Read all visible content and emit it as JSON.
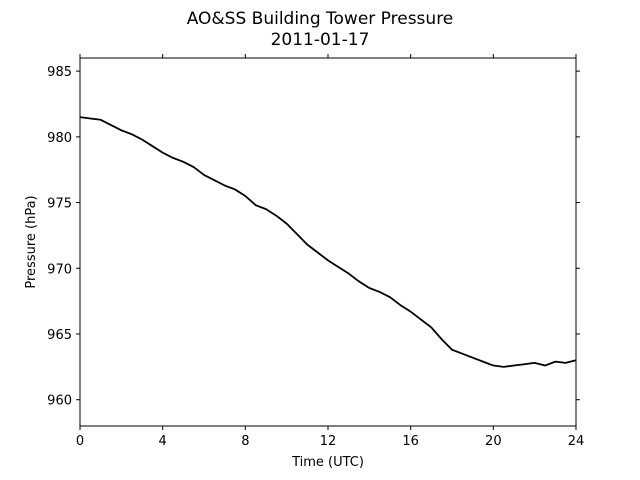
{
  "chart_data": {
    "type": "line",
    "title": "AO&SS Building Tower Pressure",
    "subtitle": "2011-01-17",
    "xlabel": "Time (UTC)",
    "ylabel": "Pressure (hPa)",
    "xlim": [
      0,
      24
    ],
    "ylim": [
      958,
      986
    ],
    "xticks": [
      0,
      4,
      8,
      12,
      16,
      20,
      24
    ],
    "yticks": [
      960,
      965,
      970,
      975,
      980,
      985
    ],
    "grid": false,
    "colors": {
      "line": "#000000",
      "axes": "#000000",
      "background": "#ffffff"
    },
    "series": [
      {
        "x": [
          0,
          0.5,
          1,
          1.5,
          2,
          2.5,
          3,
          3.5,
          4,
          4.5,
          5,
          5.5,
          6,
          6.5,
          7,
          7.5,
          8,
          8.5,
          9,
          9.5,
          10,
          10.5,
          11,
          11.5,
          12,
          12.5,
          13,
          13.5,
          14,
          14.5,
          15,
          15.5,
          16,
          16.5,
          17,
          17.5,
          18,
          18.5,
          19,
          19.5,
          20,
          20.5,
          21,
          21.5,
          22,
          22.5,
          23,
          23.5,
          24
        ],
        "y": [
          981.5,
          981.4,
          981.3,
          980.9,
          980.5,
          980.2,
          979.8,
          979.3,
          978.8,
          978.4,
          978.1,
          977.7,
          977.1,
          976.7,
          976.3,
          976.0,
          975.5,
          974.8,
          974.5,
          974.0,
          973.4,
          972.6,
          971.8,
          971.2,
          970.6,
          970.1,
          969.6,
          969.0,
          968.5,
          968.2,
          967.8,
          967.2,
          966.7,
          966.1,
          965.5,
          964.6,
          963.8,
          963.5,
          963.2,
          962.9,
          962.6,
          962.5,
          962.6,
          962.7,
          962.8,
          962.6,
          962.9,
          962.8,
          963.0
        ]
      }
    ]
  }
}
